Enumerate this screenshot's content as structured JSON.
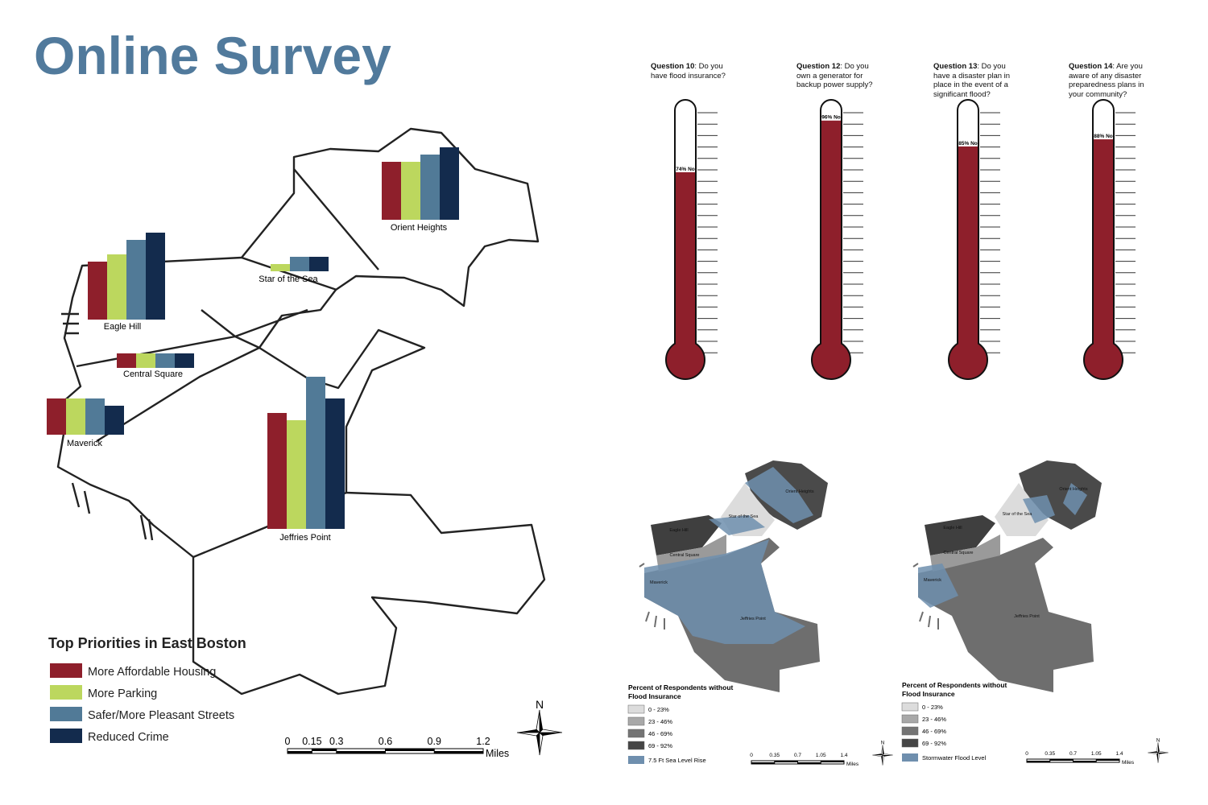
{
  "title": "Online Survey",
  "priorities": {
    "legend_title": "Top Priorities in East Boston",
    "categories": [
      {
        "name": "More Affordable Housing",
        "color": "#8e1f2b"
      },
      {
        "name": "More Parking",
        "color": "#bcd75e"
      },
      {
        "name": "Safer/More Pleasant Streets",
        "color": "#517a97"
      },
      {
        "name": "Reduced Crime",
        "color": "#132b4d"
      }
    ],
    "neighborhoods": [
      {
        "name": "Orient Heights",
        "values": [
          8,
          8,
          9,
          10
        ]
      },
      {
        "name": "Star of the Sea",
        "values": [
          0,
          1,
          2,
          2
        ]
      },
      {
        "name": "Eagle Hill",
        "values": [
          8,
          9,
          11,
          12
        ]
      },
      {
        "name": "Central Square",
        "values": [
          2,
          2,
          2,
          2
        ]
      },
      {
        "name": "Maverick",
        "values": [
          5,
          5,
          5,
          4
        ]
      },
      {
        "name": "Jeffries Point",
        "values": [
          16,
          15,
          21,
          18
        ]
      }
    ],
    "scale": {
      "ticks": [
        0,
        0.15,
        0.3,
        0.6,
        0.9,
        1.2
      ],
      "unit": "Miles"
    },
    "north": "N"
  },
  "questions": [
    {
      "label": "Question 10",
      "text": ": Do you have flood insurance?",
      "value": 74,
      "value_label": "74% No"
    },
    {
      "label": "Question 12",
      "text": ": Do you own a generator for backup power supply?",
      "value": 96,
      "value_label": "96% No"
    },
    {
      "label": "Question 13",
      "text": ": Do you have a disaster plan in place in the event of a significant flood?",
      "value": 85,
      "value_label": "85% No"
    },
    {
      "label": "Question 14",
      "text": ": Are you aware of any disaster preparedness plans in your community?",
      "value": 88,
      "value_label": "88% No"
    }
  ],
  "thermometer_color": "#8e1f2b",
  "flood_maps": [
    {
      "legend_title": "Percent of Respondents without Flood Insurance",
      "classes": [
        {
          "label": "0 - 23%",
          "color": "#dcdcdc"
        },
        {
          "label": "23 - 46%",
          "color": "#a8a8a8"
        },
        {
          "label": "46 - 69%",
          "color": "#747474"
        },
        {
          "label": "69 - 92%",
          "color": "#454545"
        }
      ],
      "layer": {
        "label": "7.5 Ft Sea Level Rise",
        "color": "#6f8fae"
      },
      "neighborhoods": [
        "Orient Heights",
        "Star of the Sea",
        "Eagle Hill",
        "Central Square",
        "Maverick",
        "Jeffries Point"
      ],
      "scale": {
        "ticks": [
          0,
          0.35,
          0.7,
          1.05,
          1.4
        ],
        "unit": "Miles"
      },
      "north": "N"
    },
    {
      "legend_title": "Percent of Respondents without Flood Insurance",
      "classes": [
        {
          "label": "0 - 23%",
          "color": "#dcdcdc"
        },
        {
          "label": "23 - 46%",
          "color": "#a8a8a8"
        },
        {
          "label": "46 - 69%",
          "color": "#747474"
        },
        {
          "label": "69 - 92%",
          "color": "#454545"
        }
      ],
      "layer": {
        "label": "Stormwater Flood Level",
        "color": "#6f8fae"
      },
      "neighborhoods": [
        "Orient Heights",
        "Star of the Sea",
        "Eagle Hill",
        "Central Square",
        "Maverick",
        "Jeffries Point"
      ],
      "scale": {
        "ticks": [
          0,
          0.35,
          0.7,
          1.05,
          1.4
        ],
        "unit": "Miles"
      },
      "north": "N"
    }
  ]
}
